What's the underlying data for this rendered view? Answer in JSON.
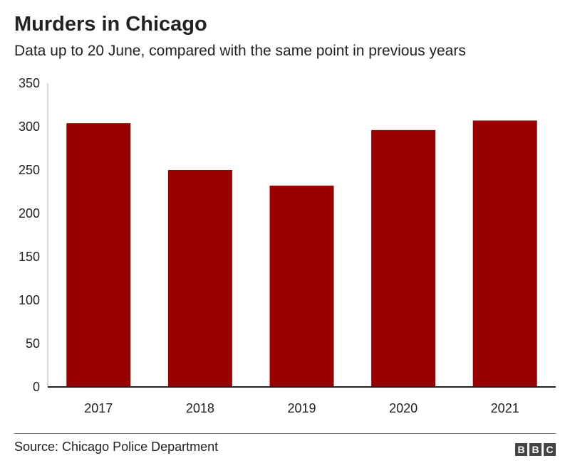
{
  "chart_data": {
    "type": "bar",
    "title": "Murders in Chicago",
    "subtitle": "Data up to 20 June, compared with the same point in previous years",
    "categories": [
      "2017",
      "2018",
      "2019",
      "2020",
      "2021"
    ],
    "values": [
      304,
      250,
      232,
      296,
      307
    ],
    "ylim": [
      0,
      350
    ],
    "yticks": [
      0,
      50,
      100,
      150,
      200,
      250,
      300,
      350
    ],
    "xlabel": "",
    "ylabel": "",
    "grid": false,
    "bar_color": "#990000"
  },
  "footer": {
    "source": "Source: Chicago Police Department",
    "logo_letters": [
      "B",
      "B",
      "C"
    ]
  }
}
